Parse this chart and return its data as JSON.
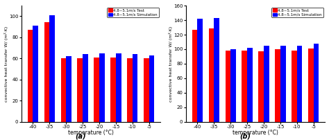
{
  "categories": [
    "-40",
    "-35",
    "-30",
    "-25",
    "-20",
    "-15",
    "-10",
    "-5"
  ],
  "chart_a": {
    "test": [
      87,
      94,
      60,
      60,
      61,
      61,
      60,
      60
    ],
    "simulation": [
      91,
      101,
      62,
      64,
      65,
      65,
      64,
      63
    ]
  },
  "chart_b": {
    "test": [
      127,
      129,
      98,
      98,
      97,
      100,
      98,
      101
    ],
    "simulation": [
      142,
      143,
      100,
      102,
      105,
      105,
      105,
      108
    ]
  },
  "ylabel_a": "convective heat transfer W/ (m²·K)",
  "ylabel_b": "convective heat transfer W/ (m²·K)",
  "xlabel": "temperature (°C)",
  "ylim_a": [
    0,
    110
  ],
  "ylim_b": [
    0,
    160
  ],
  "yticks_a": [
    0,
    20,
    40,
    60,
    80,
    100
  ],
  "yticks_b": [
    0,
    20,
    40,
    60,
    80,
    100,
    120,
    140,
    160
  ],
  "legend_test": "4.8~5.1m/s Test",
  "legend_sim": "4.8~5.1m/s Simulation",
  "label_a": "(a)",
  "label_b": "(b)",
  "color_test": "#FF0000",
  "color_sim": "#0000FF",
  "bar_width": 0.32
}
